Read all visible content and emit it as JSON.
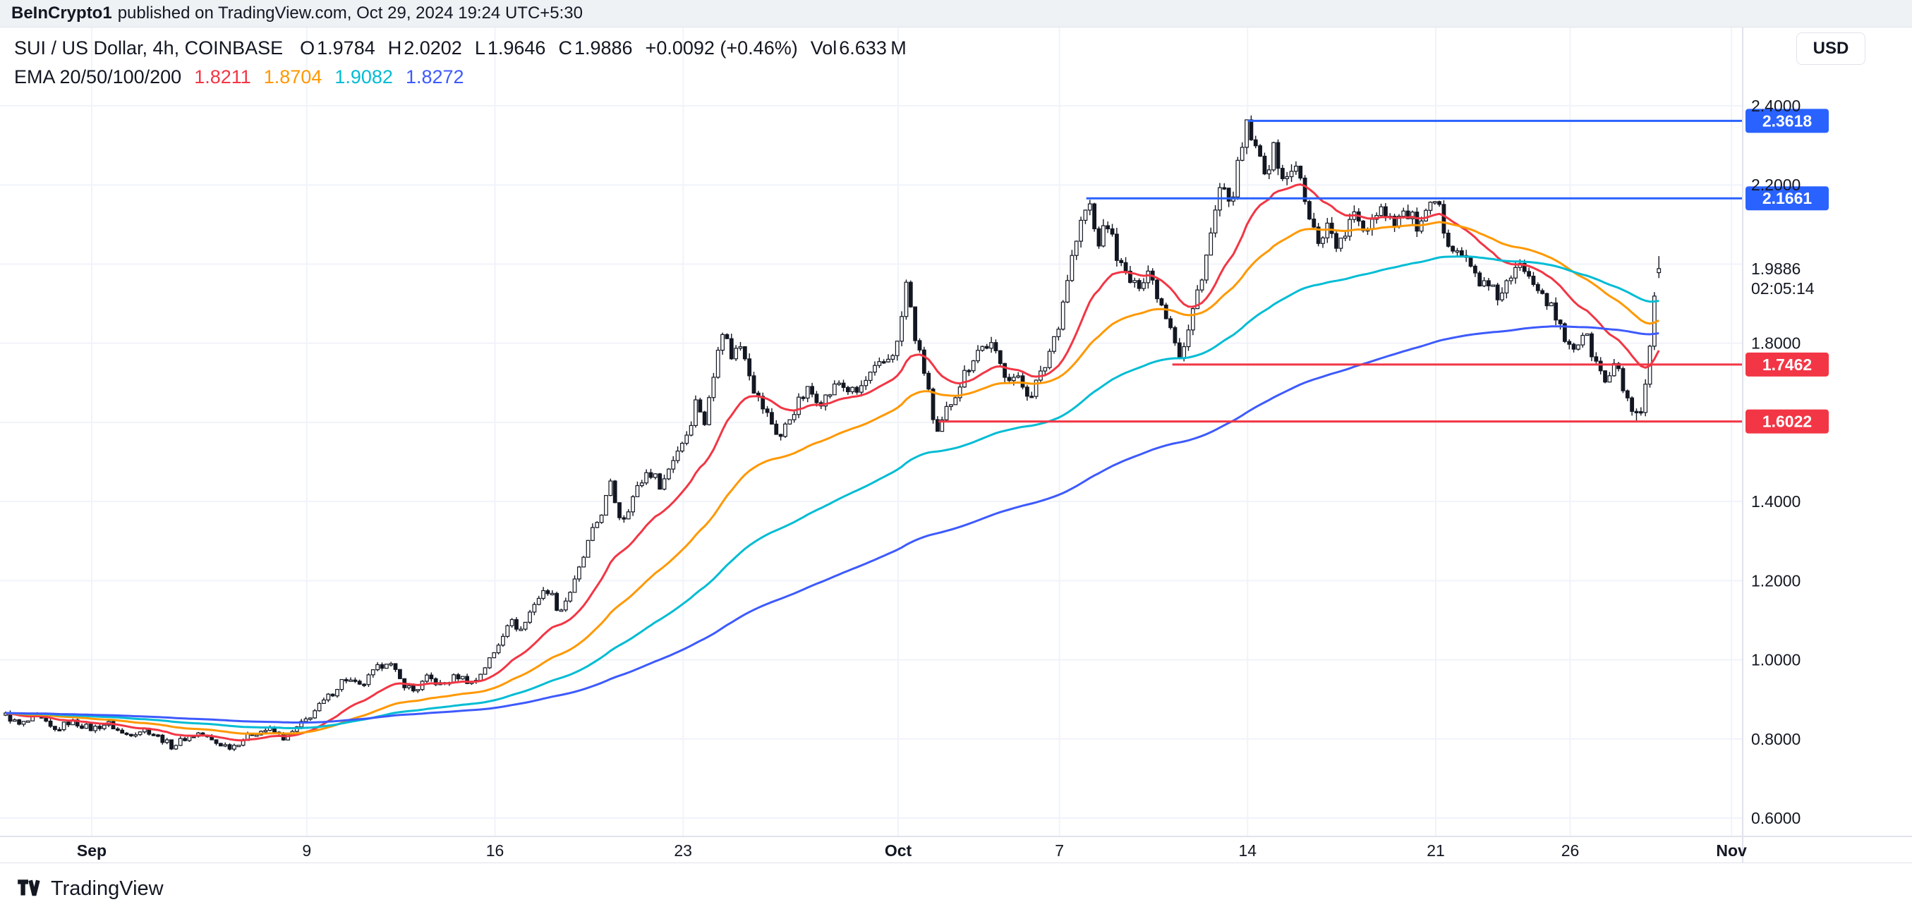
{
  "attribution": {
    "user": "BeInCrypto1",
    "text": "published on TradingView.com, Oct 29, 2024 19:24 UTC+5:30"
  },
  "header": {
    "symbol_title": "SUI / US Dollar, 4h, COINBASE",
    "ohlc": {
      "o_label": "O",
      "o": "1.9784",
      "h_label": "H",
      "h": "2.0202",
      "l_label": "L",
      "l": "1.9646",
      "c_label": "C",
      "c": "1.9886",
      "change": "+0.0092 (+0.46%)",
      "vol_label": "Vol",
      "vol": "6.633 M"
    },
    "ema_label": "EMA 20/50/100/200",
    "ema_values": [
      "1.8211",
      "1.8704",
      "1.9082",
      "1.8272"
    ]
  },
  "currency_button": "USD",
  "footer": {
    "brand": "TradingView"
  },
  "chart_data": {
    "type": "candlestick",
    "title": "SUI / US Dollar, 4h, COINBASE",
    "symbol": "SUI/USD",
    "timeframe": "4h",
    "exchange": "COINBASE",
    "ylim": [
      0.55,
      2.6
    ],
    "xlim_days": [
      0.5,
      65.8
    ],
    "grid": true,
    "candles_per_day": 6,
    "candle_colors": {
      "up_fill": "#ffffff",
      "down_fill": "#131722",
      "outline": "#131722"
    },
    "current_price": {
      "value": 1.9886,
      "label": "1.9886",
      "countdown": "02:05:14"
    },
    "last_candle": {
      "o": 1.9784,
      "h": 2.0202,
      "l": 1.9646,
      "c": 1.9886
    },
    "extremes": {
      "high": {
        "day": 47.0,
        "price": 2.3618
      },
      "low": {
        "day": 61.5,
        "price": 1.6022
      }
    },
    "levels": [
      {
        "price": 2.3618,
        "label": "2.3618",
        "color": "#2962ff",
        "start_day": 47.0,
        "role": "resistance"
      },
      {
        "price": 2.1661,
        "label": "2.1661",
        "color": "#2962ff",
        "start_day": 41.0,
        "role": "resistance"
      },
      {
        "price": 1.7462,
        "label": "1.7462",
        "color": "#f23645",
        "start_day": 44.2,
        "role": "support"
      },
      {
        "price": 1.6022,
        "label": "1.6022",
        "color": "#f23645",
        "start_day": 35.5,
        "role": "support"
      }
    ],
    "emas": [
      {
        "period": 20,
        "color": "#f23645",
        "last_value": 1.8211
      },
      {
        "period": 50,
        "color": "#ff9800",
        "last_value": 1.8704
      },
      {
        "period": 100,
        "color": "#00bcd4",
        "last_value": 1.9082
      },
      {
        "period": 200,
        "color": "#3d5afe",
        "last_value": 1.8272
      }
    ],
    "h_gridlines": [
      0.6,
      0.8,
      1.0,
      1.2,
      1.4,
      1.6,
      1.8,
      2.0,
      2.2,
      2.4
    ],
    "y_axis": {
      "ticks": [
        {
          "label": "2.4000",
          "price": 2.4
        },
        {
          "label": "2.2000",
          "price": 2.2
        },
        {
          "label": "1.8000",
          "price": 1.8
        },
        {
          "label": "1.4000",
          "price": 1.4
        },
        {
          "label": "1.2000",
          "price": 1.2
        },
        {
          "label": "1.0000",
          "price": 1.0
        },
        {
          "label": "0.8000",
          "price": 0.8
        },
        {
          "label": "0.6000",
          "price": 0.6
        }
      ]
    },
    "x_axis": {
      "ticks": [
        {
          "label": "Sep",
          "day": 4,
          "major": true
        },
        {
          "label": "9",
          "day": 12,
          "major": false
        },
        {
          "label": "16",
          "day": 19,
          "major": false
        },
        {
          "label": "23",
          "day": 26,
          "major": false
        },
        {
          "label": "Oct",
          "day": 34,
          "major": true
        },
        {
          "label": "7",
          "day": 40,
          "major": false
        },
        {
          "label": "14",
          "day": 47,
          "major": false
        },
        {
          "label": "21",
          "day": 54,
          "major": false
        },
        {
          "label": "26",
          "day": 59,
          "major": false
        },
        {
          "label": "Nov",
          "day": 65,
          "major": true
        }
      ]
    },
    "price_path": [
      [
        0.8,
        0.86
      ],
      [
        1.3,
        0.835
      ],
      [
        2.0,
        0.855
      ],
      [
        2.6,
        0.82
      ],
      [
        3.2,
        0.845
      ],
      [
        4.0,
        0.825
      ],
      [
        4.6,
        0.84
      ],
      [
        5.2,
        0.81
      ],
      [
        6.0,
        0.825
      ],
      [
        6.6,
        0.8
      ],
      [
        7.0,
        0.78
      ],
      [
        7.4,
        0.8
      ],
      [
        8.0,
        0.815
      ],
      [
        8.6,
        0.79
      ],
      [
        9.2,
        0.78
      ],
      [
        10.0,
        0.815
      ],
      [
        10.6,
        0.825
      ],
      [
        11.2,
        0.8
      ],
      [
        12.0,
        0.85
      ],
      [
        12.5,
        0.885
      ],
      [
        13.0,
        0.92
      ],
      [
        13.4,
        0.955
      ],
      [
        14.0,
        0.93
      ],
      [
        14.5,
        0.97
      ],
      [
        15.0,
        1.0
      ],
      [
        15.5,
        0.945
      ],
      [
        16.0,
        0.92
      ],
      [
        16.5,
        0.955
      ],
      [
        17.0,
        0.935
      ],
      [
        17.6,
        0.96
      ],
      [
        18.2,
        0.94
      ],
      [
        19.0,
        1.02
      ],
      [
        19.5,
        1.1
      ],
      [
        20.0,
        1.075
      ],
      [
        20.5,
        1.15
      ],
      [
        21.0,
        1.18
      ],
      [
        21.4,
        1.12
      ],
      [
        22.0,
        1.2
      ],
      [
        22.5,
        1.3
      ],
      [
        23.0,
        1.38
      ],
      [
        23.3,
        1.44
      ],
      [
        23.7,
        1.35
      ],
      [
        24.2,
        1.42
      ],
      [
        24.7,
        1.48
      ],
      [
        25.2,
        1.44
      ],
      [
        25.7,
        1.52
      ],
      [
        26.2,
        1.58
      ],
      [
        26.5,
        1.66
      ],
      [
        26.8,
        1.6
      ],
      [
        27.1,
        1.7
      ],
      [
        27.4,
        1.85
      ],
      [
        27.8,
        1.77
      ],
      [
        28.2,
        1.8
      ],
      [
        28.7,
        1.67
      ],
      [
        29.2,
        1.61
      ],
      [
        29.6,
        1.56
      ],
      [
        30.1,
        1.63
      ],
      [
        30.6,
        1.68
      ],
      [
        31.2,
        1.655
      ],
      [
        31.8,
        1.7
      ],
      [
        32.4,
        1.67
      ],
      [
        33.0,
        1.72
      ],
      [
        33.6,
        1.76
      ],
      [
        34.0,
        1.8
      ],
      [
        34.3,
        1.95
      ],
      [
        34.7,
        1.79
      ],
      [
        35.1,
        1.7
      ],
      [
        35.4,
        1.55
      ],
      [
        35.8,
        1.63
      ],
      [
        36.3,
        1.7
      ],
      [
        36.9,
        1.78
      ],
      [
        37.4,
        1.8
      ],
      [
        37.9,
        1.73
      ],
      [
        38.4,
        1.71
      ],
      [
        38.9,
        1.67
      ],
      [
        39.4,
        1.73
      ],
      [
        40.0,
        1.86
      ],
      [
        40.4,
        2.0
      ],
      [
        40.8,
        2.1
      ],
      [
        41.1,
        2.16
      ],
      [
        41.4,
        2.05
      ],
      [
        41.8,
        2.1
      ],
      [
        42.3,
        1.99
      ],
      [
        42.8,
        1.94
      ],
      [
        43.3,
        1.985
      ],
      [
        43.8,
        1.9
      ],
      [
        44.2,
        1.84
      ],
      [
        44.5,
        1.76
      ],
      [
        44.8,
        1.83
      ],
      [
        45.2,
        1.95
      ],
      [
        45.6,
        2.06
      ],
      [
        46.0,
        2.2
      ],
      [
        46.3,
        2.14
      ],
      [
        46.7,
        2.26
      ],
      [
        47.0,
        2.355
      ],
      [
        47.3,
        2.28
      ],
      [
        47.7,
        2.24
      ],
      [
        48.0,
        2.29
      ],
      [
        48.4,
        2.2
      ],
      [
        48.8,
        2.26
      ],
      [
        49.2,
        2.13
      ],
      [
        49.6,
        2.06
      ],
      [
        50.0,
        2.1
      ],
      [
        50.4,
        2.04
      ],
      [
        50.9,
        2.12
      ],
      [
        51.4,
        2.09
      ],
      [
        51.9,
        2.15
      ],
      [
        52.4,
        2.11
      ],
      [
        52.9,
        2.13
      ],
      [
        53.4,
        2.09
      ],
      [
        54.0,
        2.16
      ],
      [
        54.4,
        2.07
      ],
      [
        54.8,
        2.04
      ],
      [
        55.3,
        1.99
      ],
      [
        55.8,
        1.945
      ],
      [
        56.3,
        1.92
      ],
      [
        56.8,
        1.96
      ],
      [
        57.2,
        2.0
      ],
      [
        57.6,
        1.97
      ],
      [
        58.0,
        1.93
      ],
      [
        58.4,
        1.87
      ],
      [
        58.8,
        1.81
      ],
      [
        59.2,
        1.79
      ],
      [
        59.5,
        1.83
      ],
      [
        59.9,
        1.76
      ],
      [
        60.3,
        1.7
      ],
      [
        60.7,
        1.745
      ],
      [
        61.1,
        1.66
      ],
      [
        61.4,
        1.615
      ],
      [
        61.6,
        1.605
      ],
      [
        61.8,
        1.68
      ],
      [
        62.0,
        1.8
      ],
      [
        62.15,
        1.93
      ],
      [
        62.3,
        1.9886
      ]
    ]
  }
}
